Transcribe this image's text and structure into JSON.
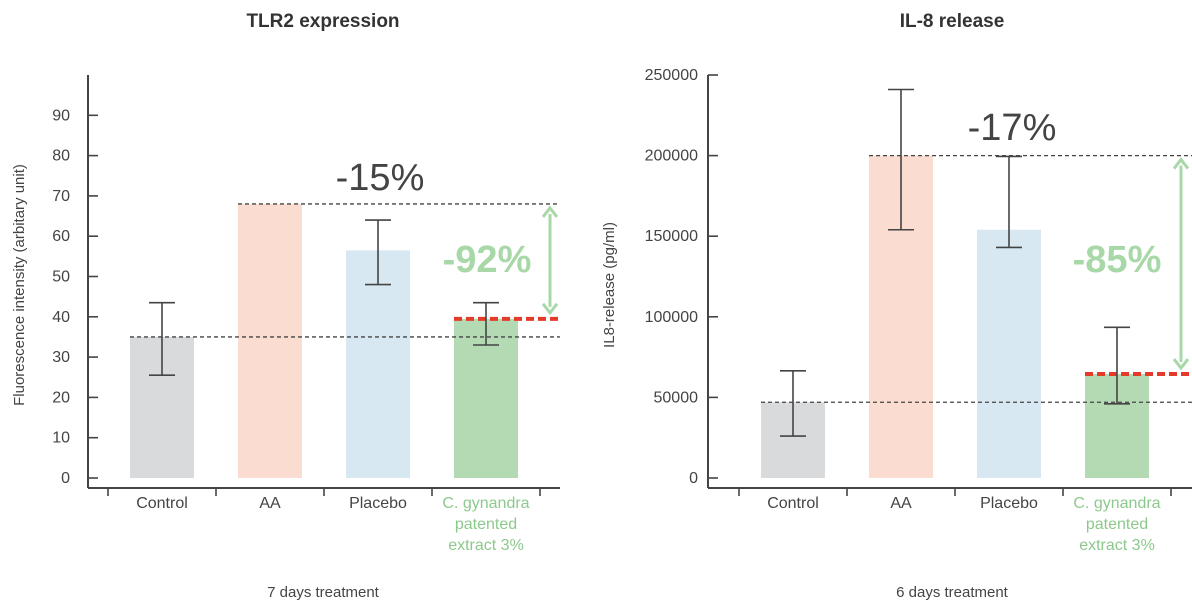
{
  "charts": [
    {
      "type": "bar",
      "title": "TLR2 expression",
      "ylabel": "Fluorescence intensity (arbitary unit)",
      "xlabel": "7 days treatment",
      "categories": [
        "Control",
        "AA",
        "Placebo",
        "C. gynandra patented extract 3%"
      ],
      "category_lines": [
        [
          "Control"
        ],
        [
          "AA"
        ],
        [
          "Placebo"
        ],
        [
          "C. gynandra",
          "patented",
          "extract 3%"
        ]
      ],
      "values": [
        35,
        68,
        56.5,
        39.5
      ],
      "err_low": [
        25.5,
        null,
        48,
        33
      ],
      "err_high": [
        43.5,
        null,
        64,
        43.5
      ],
      "ylim": [
        0,
        100
      ],
      "yticks": [
        0,
        10,
        20,
        30,
        40,
        50,
        60,
        70,
        80,
        90
      ],
      "ytick_labels": [
        "0",
        "10",
        "20",
        "30",
        "40",
        "50",
        "60",
        "70",
        "80",
        "90"
      ],
      "ref_lines": [
        68,
        35
      ],
      "treated_level": 39.5,
      "annotation_gray": "-15%",
      "annotation_green": "-92%",
      "colors": [
        "#d9dadb",
        "#fbdcd0",
        "#d8e8f2",
        "#b3dab3"
      ]
    },
    {
      "type": "bar",
      "title": "IL-8 release",
      "ylabel": "IL8-release (pg/ml)",
      "xlabel": "6 days treatment",
      "categories": [
        "Control",
        "AA",
        "Placebo",
        "C. gynandra patented extract 3%"
      ],
      "category_lines": [
        [
          "Control"
        ],
        [
          "AA"
        ],
        [
          "Placebo"
        ],
        [
          "C. gynandra",
          "patented",
          "extract 3%"
        ]
      ],
      "values": [
        47000,
        200000,
        154000,
        64500
      ],
      "err_low": [
        26000,
        154000,
        143000,
        46000
      ],
      "err_high": [
        66500,
        241000,
        199500,
        93500
      ],
      "ylim": [
        0,
        250000
      ],
      "yticks": [
        0,
        50000,
        100000,
        150000,
        200000,
        250000
      ],
      "ytick_labels": [
        "0",
        "50000",
        "100000",
        "150000",
        "200000",
        "250000"
      ],
      "ref_lines": [
        200000,
        47000
      ],
      "treated_level": 64500,
      "annotation_gray": "-17%",
      "annotation_green": "-85%",
      "colors": [
        "#d9dadb",
        "#fbdcd0",
        "#d8e8f2",
        "#b3dab3"
      ]
    }
  ]
}
